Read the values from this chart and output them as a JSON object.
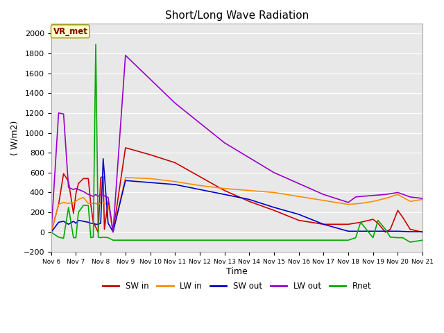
{
  "title": "Short/Long Wave Radiation",
  "xlabel": "Time",
  "ylabel": "( W/m2)",
  "ylim": [
    -200,
    2100
  ],
  "bg_color": "#e8e8e8",
  "annotation_label": "VR_met",
  "x_tick_labels": [
    "Nov 6",
    "Nov 7",
    "Nov 8",
    "Nov 9",
    "Nov 10",
    "Nov 11",
    "Nov 12",
    "Nov 13",
    "Nov 14",
    "Nov 15",
    "Nov 16",
    "Nov 17",
    "Nov 18",
    "Nov 19",
    "Nov 20",
    "Nov 21"
  ],
  "series": {
    "SW_in": {
      "color": "#cc0000",
      "x": [
        0,
        0.3,
        0.5,
        0.7,
        0.9,
        1.0,
        1.1,
        1.3,
        1.5,
        1.6,
        1.7,
        1.8,
        1.9,
        2.0,
        2.1,
        2.15,
        2.3,
        2.5,
        3.0,
        4.0,
        5.0,
        6.0,
        7.0,
        8.0,
        9.0,
        10.0,
        11.0,
        12.0,
        12.5,
        13.0,
        13.2,
        13.5,
        13.7,
        14.0,
        14.2,
        14.5,
        15.0
      ],
      "y": [
        0,
        280,
        590,
        510,
        190,
        390,
        490,
        540,
        540,
        280,
        100,
        50,
        0,
        550,
        560,
        30,
        310,
        0,
        850,
        780,
        700,
        560,
        420,
        310,
        220,
        120,
        80,
        80,
        100,
        130,
        90,
        0,
        30,
        220,
        150,
        30,
        0
      ]
    },
    "LW_in": {
      "color": "#ff8c00",
      "x": [
        0,
        0.3,
        0.5,
        0.7,
        0.9,
        1.0,
        1.1,
        1.3,
        1.5,
        1.6,
        1.7,
        1.8,
        1.9,
        2.0,
        2.1,
        2.3,
        2.5,
        3.0,
        4.0,
        5.0,
        6.0,
        7.0,
        8.0,
        9.0,
        10.0,
        11.0,
        12.0,
        12.5,
        13.0,
        13.5,
        14.0,
        14.5,
        15.0
      ],
      "y": [
        0,
        280,
        300,
        290,
        300,
        310,
        330,
        350,
        290,
        290,
        290,
        290,
        280,
        295,
        300,
        270,
        10,
        550,
        540,
        510,
        470,
        440,
        420,
        400,
        360,
        320,
        280,
        290,
        310,
        340,
        380,
        310,
        330
      ]
    },
    "SW_out": {
      "color": "#0000cc",
      "x": [
        0,
        0.3,
        0.5,
        0.7,
        0.9,
        1.0,
        1.1,
        1.3,
        1.5,
        1.6,
        1.7,
        1.8,
        1.9,
        2.0,
        2.1,
        2.3,
        2.5,
        3.0,
        4.0,
        5.0,
        6.0,
        7.0,
        8.0,
        9.0,
        10.0,
        11.0,
        12.0,
        12.5,
        13.0,
        13.5,
        14.0,
        14.5,
        15.0
      ],
      "y": [
        0,
        100,
        110,
        80,
        110,
        90,
        120,
        110,
        100,
        90,
        90,
        80,
        80,
        90,
        740,
        90,
        5,
        520,
        500,
        480,
        430,
        380,
        330,
        250,
        180,
        80,
        10,
        10,
        10,
        10,
        10,
        5,
        5
      ]
    },
    "LW_out": {
      "color": "#9900cc",
      "x": [
        0,
        0.3,
        0.5,
        0.7,
        0.9,
        1.0,
        1.1,
        1.3,
        1.5,
        1.6,
        1.7,
        1.8,
        1.9,
        2.0,
        2.1,
        2.3,
        2.5,
        3.0,
        5.0,
        7.0,
        9.0,
        11.0,
        12.0,
        12.3,
        12.5,
        13.0,
        13.5,
        14.0,
        14.5,
        15.0
      ],
      "y": [
        0,
        1200,
        1190,
        450,
        430,
        440,
        430,
        410,
        380,
        370,
        360,
        380,
        360,
        380,
        370,
        350,
        5,
        1780,
        1300,
        900,
        600,
        380,
        300,
        355,
        360,
        370,
        380,
        400,
        355,
        340
      ]
    },
    "Rnet": {
      "color": "#00aa00",
      "x": [
        0,
        0.3,
        0.5,
        0.7,
        0.9,
        1.0,
        1.1,
        1.3,
        1.5,
        1.6,
        1.7,
        1.8,
        1.9,
        2.0,
        2.1,
        2.3,
        2.5,
        3.0,
        12.0,
        12.3,
        12.5,
        13.0,
        13.2,
        13.5,
        13.7,
        14.0,
        14.2,
        14.5,
        15.0
      ],
      "y": [
        0,
        -50,
        -60,
        250,
        -55,
        -55,
        200,
        270,
        270,
        -55,
        -50,
        1890,
        -50,
        -55,
        -50,
        -55,
        -80,
        -80,
        -80,
        -55,
        100,
        -55,
        120,
        30,
        -50,
        -55,
        -55,
        -100,
        -80
      ]
    }
  },
  "legend": [
    {
      "label": "SW in",
      "color": "#cc0000"
    },
    {
      "label": "LW in",
      "color": "#ff8c00"
    },
    {
      "label": "SW out",
      "color": "#0000cc"
    },
    {
      "label": "LW out",
      "color": "#9900cc"
    },
    {
      "label": "Rnet",
      "color": "#00aa00"
    }
  ]
}
